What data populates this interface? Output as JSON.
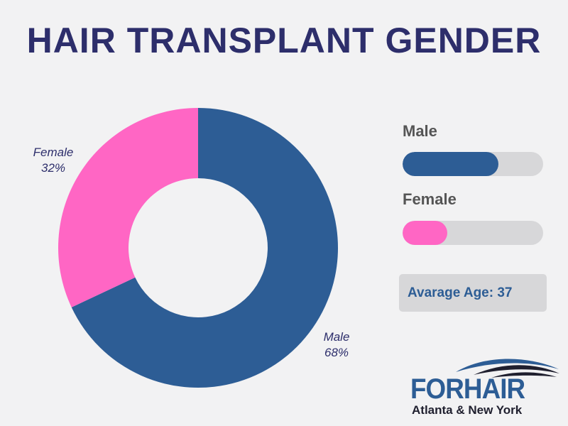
{
  "title": "HAIR TRANSPLANT GENDER",
  "chart_data": {
    "type": "pie",
    "title": "HAIR TRANSPLANT GENDER",
    "donut": true,
    "slices": [
      {
        "label": "Male",
        "value": 68,
        "display": "68%",
        "color": "#2d5d95"
      },
      {
        "label": "Female",
        "value": 32,
        "display": "32%",
        "color": "#ff66c4"
      }
    ]
  },
  "legend": {
    "items": [
      {
        "label": "Male",
        "fraction": 0.68,
        "color": "#2d5d95"
      },
      {
        "label": "Female",
        "fraction": 0.32,
        "color": "#ff66c4"
      }
    ]
  },
  "average_age": {
    "text": "Avarage Age: 37"
  },
  "logo": {
    "wordmark": "FORHAIR",
    "tagline": "Atlanta & New York",
    "colors": {
      "brand": "#2d5d95",
      "dark": "#1f1f2e"
    }
  }
}
